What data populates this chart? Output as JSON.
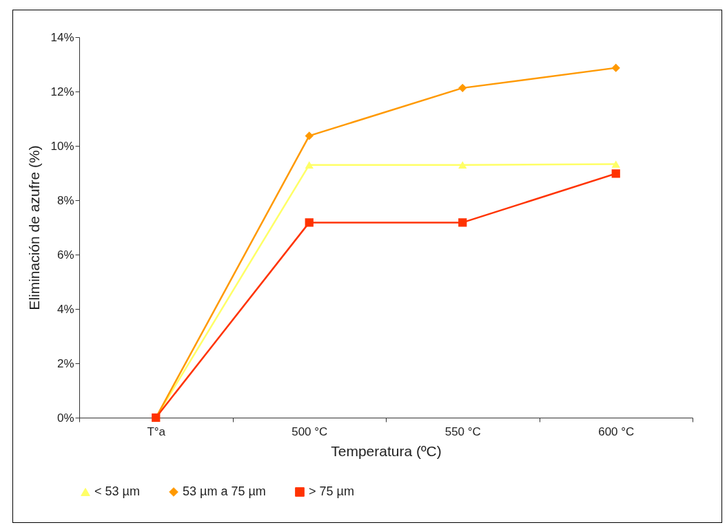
{
  "chart_data": {
    "type": "line",
    "xlabel": "Temperatura (ºC)",
    "ylabel": "Eliminación de azufre (%)",
    "categories": [
      "T°a",
      "500 °C",
      "550 °C",
      "600 °C"
    ],
    "series": [
      {
        "name": "< 53 µm",
        "color": "#ffff66",
        "marker": "triangle",
        "values": [
          0,
          9.3,
          9.3,
          9.33
        ]
      },
      {
        "name": "53 µm a 75 µm",
        "color": "#ff9900",
        "marker": "diamond",
        "values": [
          0,
          10.37,
          12.13,
          12.87
        ]
      },
      {
        "name": "> 75 µm",
        "color": "#ff3300",
        "marker": "square",
        "values": [
          0,
          7.18,
          7.18,
          8.98
        ]
      }
    ],
    "ylim": [
      0,
      14
    ],
    "yticks": [
      {
        "value": 0,
        "label": "0%"
      },
      {
        "value": 2,
        "label": "2%"
      },
      {
        "value": 4,
        "label": "4%"
      },
      {
        "value": 6,
        "label": "6%"
      },
      {
        "value": 8,
        "label": "8%"
      },
      {
        "value": 10,
        "label": "10%"
      },
      {
        "value": 12,
        "label": "12%"
      },
      {
        "value": 14,
        "label": "14%"
      }
    ],
    "grid": false,
    "legend": "bottom"
  }
}
